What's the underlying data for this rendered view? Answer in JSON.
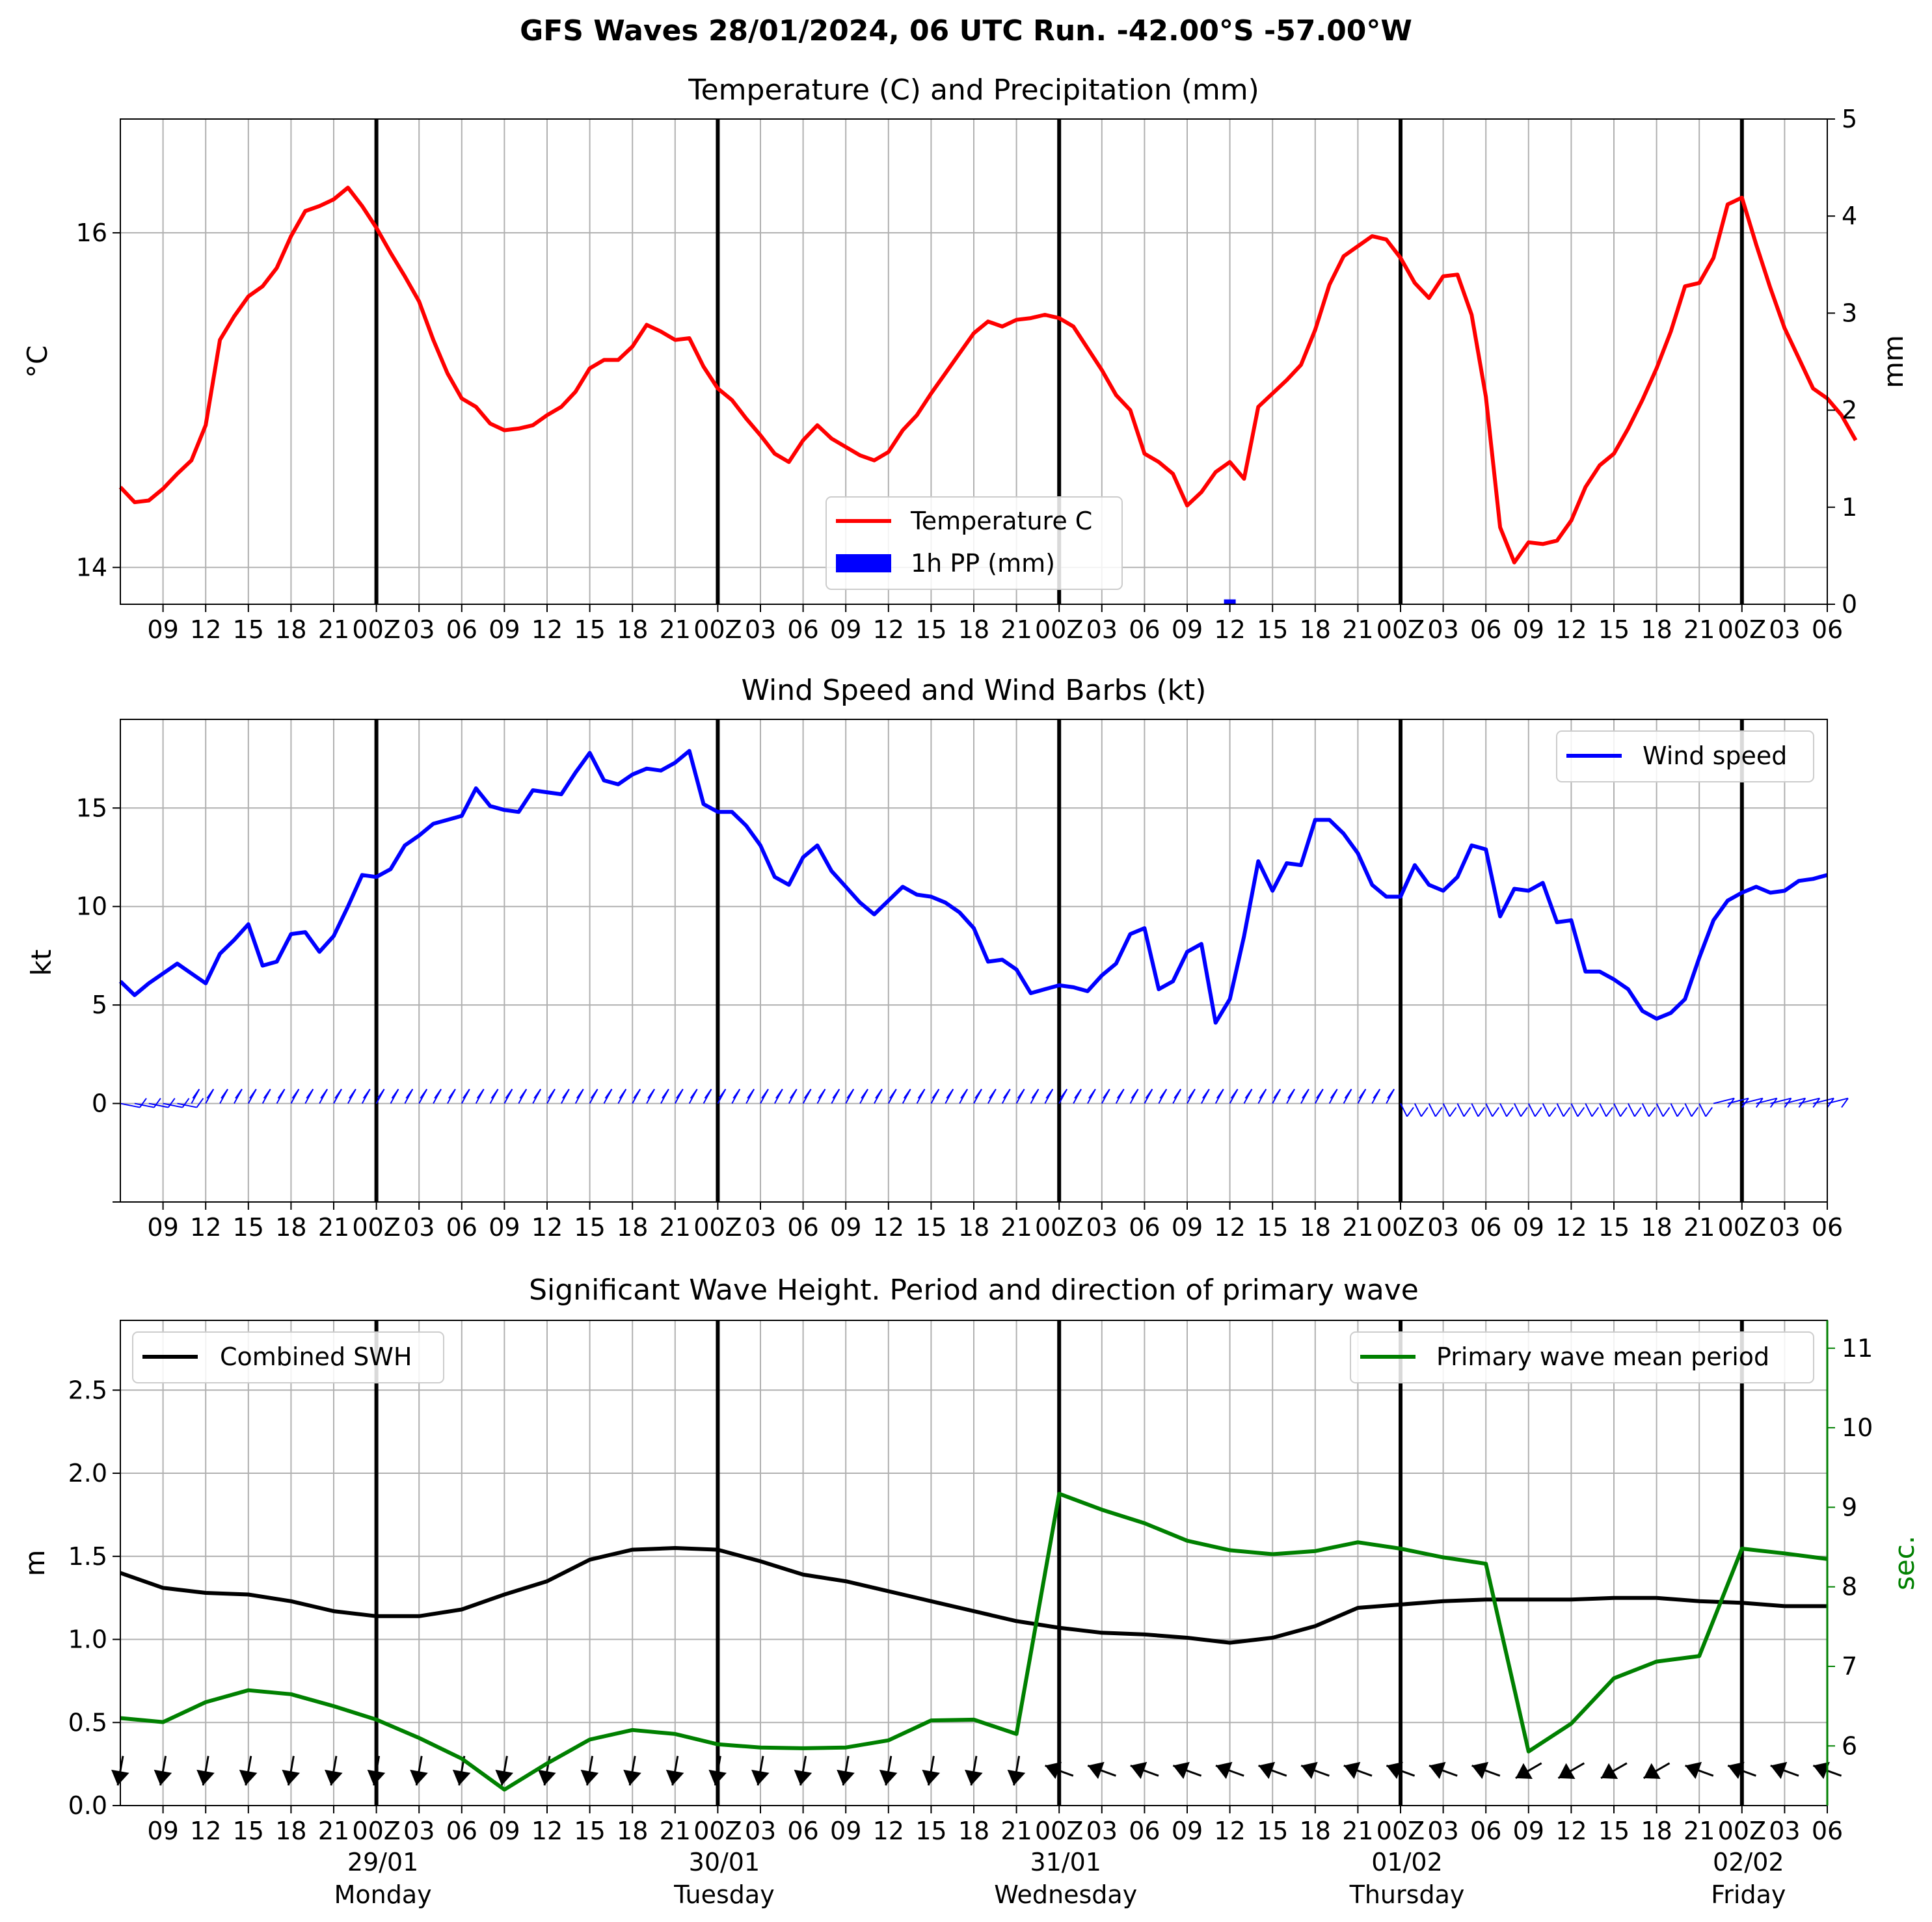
{
  "suptitle": "GFS Waves 28/01/2024, 06 UTC Run. -42.00°S -57.00°W",
  "colors": {
    "temperature": "#ff0000",
    "precip": "#0000ff",
    "wind": "#0000ff",
    "swh": "#000000",
    "period": "#008000",
    "grid": "#b0b0b0"
  },
  "x_tick_labels": [
    "09",
    "12",
    "15",
    "18",
    "21",
    "00Z",
    "03",
    "06",
    "09",
    "12",
    "15",
    "18",
    "21",
    "00Z",
    "03",
    "06",
    "09",
    "12",
    "15",
    "18",
    "21",
    "00Z",
    "03",
    "06",
    "09",
    "12",
    "15",
    "18",
    "21",
    "00Z",
    "03",
    "06",
    "09",
    "12",
    "15",
    "18",
    "21",
    "00Z",
    "03",
    "06"
  ],
  "day_labels": [
    {
      "date": "29/01",
      "day": "Monday"
    },
    {
      "date": "30/01",
      "day": "Tuesday"
    },
    {
      "date": "31/01",
      "day": "Wednesday"
    },
    {
      "date": "01/02",
      "day": "Thursday"
    },
    {
      "date": "02/02",
      "day": "Friday"
    }
  ],
  "chart_data": [
    {
      "type": "line",
      "title": "Temperature (C) and Precipitation (mm)",
      "ylabel": "°C",
      "y2label": "mm",
      "ylim": [
        13.78,
        16.68
      ],
      "y2lim": [
        0,
        5
      ],
      "yticks": [
        14,
        16
      ],
      "y2ticks": [
        0,
        1,
        2,
        3,
        4,
        5
      ],
      "grid": true,
      "legend": "bottom-center",
      "x_start": "2024-01-28T06:00Z",
      "x_end": "2024-02-02T06:00Z",
      "series": [
        {
          "name": "Temperature C",
          "x_step_hours": 1,
          "values": [
            14.48,
            14.39,
            14.4,
            14.47,
            14.56,
            14.64,
            14.85,
            15.36,
            15.5,
            15.62,
            15.68,
            15.79,
            15.98,
            16.13,
            16.16,
            16.2,
            16.27,
            16.16,
            16.03,
            15.88,
            15.74,
            15.59,
            15.36,
            15.16,
            15.01,
            14.96,
            14.86,
            14.82,
            14.83,
            14.85,
            14.91,
            14.96,
            15.05,
            15.19,
            15.24,
            15.24,
            15.32,
            15.45,
            15.41,
            15.36,
            15.37,
            15.2,
            15.07,
            15.0,
            14.89,
            14.79,
            14.68,
            14.63,
            14.76,
            14.85,
            14.77,
            14.72,
            14.67,
            14.64,
            14.69,
            14.82,
            14.91,
            15.04,
            15.16,
            15.28,
            15.4,
            15.47,
            15.44,
            15.48,
            15.49,
            15.51,
            15.49,
            15.44,
            15.31,
            15.18,
            15.03,
            14.94,
            14.68,
            14.63,
            14.56,
            14.37,
            14.45,
            14.57,
            14.63,
            14.53,
            14.96,
            15.04,
            15.12,
            15.21,
            15.42,
            15.69,
            15.86,
            15.92,
            15.98,
            15.96,
            15.85,
            15.7,
            15.61,
            15.74,
            15.75,
            15.51,
            15.02,
            14.24,
            14.03,
            14.15,
            14.14,
            14.16,
            14.28,
            14.48,
            14.61,
            14.68,
            14.83,
            15.0,
            15.19,
            15.41,
            15.68,
            15.7,
            15.85,
            16.17,
            16.21,
            15.93,
            15.67,
            15.43,
            15.25,
            15.07,
            15.01,
            14.91,
            14.76
          ]
        },
        {
          "name": "1h PP (mm)",
          "type": "bar",
          "x_offset_hours": 78,
          "values": [
            0.05
          ]
        }
      ]
    },
    {
      "type": "line",
      "title": "Wind Speed and Wind Barbs (kt)",
      "ylabel": "kt",
      "ylim": [
        -5,
        19.5
      ],
      "yticks": [
        0,
        5,
        10,
        15
      ],
      "grid": true,
      "legend": "top-right",
      "series": [
        {
          "name": "Wind speed",
          "x_step_hours": 1,
          "values": [
            6.2,
            5.5,
            6.1,
            6.6,
            7.1,
            6.6,
            6.1,
            7.6,
            8.3,
            9.1,
            7.0,
            7.2,
            8.6,
            8.7,
            7.7,
            8.5,
            10.0,
            11.6,
            11.5,
            11.9,
            13.1,
            13.6,
            14.2,
            14.4,
            14.6,
            16.0,
            15.1,
            14.9,
            14.8,
            15.9,
            15.8,
            15.7,
            16.8,
            17.8,
            16.4,
            16.2,
            16.7,
            17.0,
            16.9,
            17.3,
            17.9,
            15.2,
            14.8,
            14.8,
            14.1,
            13.1,
            11.5,
            11.1,
            12.5,
            13.1,
            11.8,
            11.0,
            10.2,
            9.6,
            10.3,
            11.0,
            10.6,
            10.5,
            10.2,
            9.7,
            8.9,
            7.2,
            7.3,
            6.8,
            5.6,
            5.8,
            6.0,
            5.9,
            5.7,
            6.5,
            7.1,
            8.6,
            8.9,
            5.8,
            6.2,
            7.7,
            8.1,
            4.1,
            5.3,
            8.5,
            12.3,
            10.8,
            12.2,
            12.1,
            14.4,
            14.4,
            13.7,
            12.7,
            11.1,
            10.5,
            10.5,
            12.1,
            11.1,
            10.8,
            11.5,
            13.1,
            12.9,
            9.5,
            10.9,
            10.8,
            11.2,
            9.2,
            9.3,
            6.7,
            6.7,
            6.3,
            5.8,
            4.7,
            4.3,
            4.6,
            5.3,
            7.4,
            9.3,
            10.3,
            10.7,
            11.0,
            10.7,
            10.8,
            11.3,
            11.4,
            11.6
          ]
        }
      ],
      "wind_barbs": "present"
    },
    {
      "type": "line",
      "title": "Significant Wave Height. Period and direction of primary wave",
      "ylabel": "m",
      "y2label": "sec.",
      "ylim": [
        0,
        2.92
      ],
      "y2lim": [
        5.25,
        11.35
      ],
      "yticks": [
        0.0,
        0.5,
        1.0,
        1.5,
        2.0,
        2.5
      ],
      "y2ticks": [
        6,
        7,
        8,
        9,
        10,
        11
      ],
      "grid": true,
      "legend": [
        "top-left",
        "top-right"
      ],
      "series": [
        {
          "name": "Combined SWH",
          "axis": "left",
          "x_step_hours": 3,
          "values": [
            1.4,
            1.31,
            1.28,
            1.27,
            1.23,
            1.17,
            1.14,
            1.14,
            1.18,
            1.27,
            1.35,
            1.48,
            1.54,
            1.55,
            1.54,
            1.47,
            1.39,
            1.35,
            1.29,
            1.23,
            1.17,
            1.11,
            1.07,
            1.04,
            1.03,
            1.01,
            0.98,
            1.01,
            1.08,
            1.19,
            1.21,
            1.23,
            1.24,
            1.24,
            1.24,
            1.25,
            1.25,
            1.23,
            1.22,
            1.2,
            1.2
          ]
        },
        {
          "name": "Primary wave mean period",
          "axis": "right",
          "x_step_hours": 3,
          "values": [
            6.35,
            6.3,
            6.55,
            6.7,
            6.65,
            6.5,
            6.33,
            6.1,
            5.84,
            5.45,
            5.78,
            6.08,
            6.2,
            6.15,
            6.02,
            5.98,
            5.97,
            5.98,
            6.07,
            6.32,
            6.33,
            6.15,
            9.17,
            8.97,
            8.8,
            8.58,
            8.46,
            8.41,
            8.45,
            8.56,
            8.48,
            8.37,
            8.29,
            5.93,
            6.28,
            6.85,
            7.06,
            7.13,
            8.48,
            8.42,
            8.35
          ]
        }
      ],
      "wave_direction_arrows": "present"
    }
  ]
}
